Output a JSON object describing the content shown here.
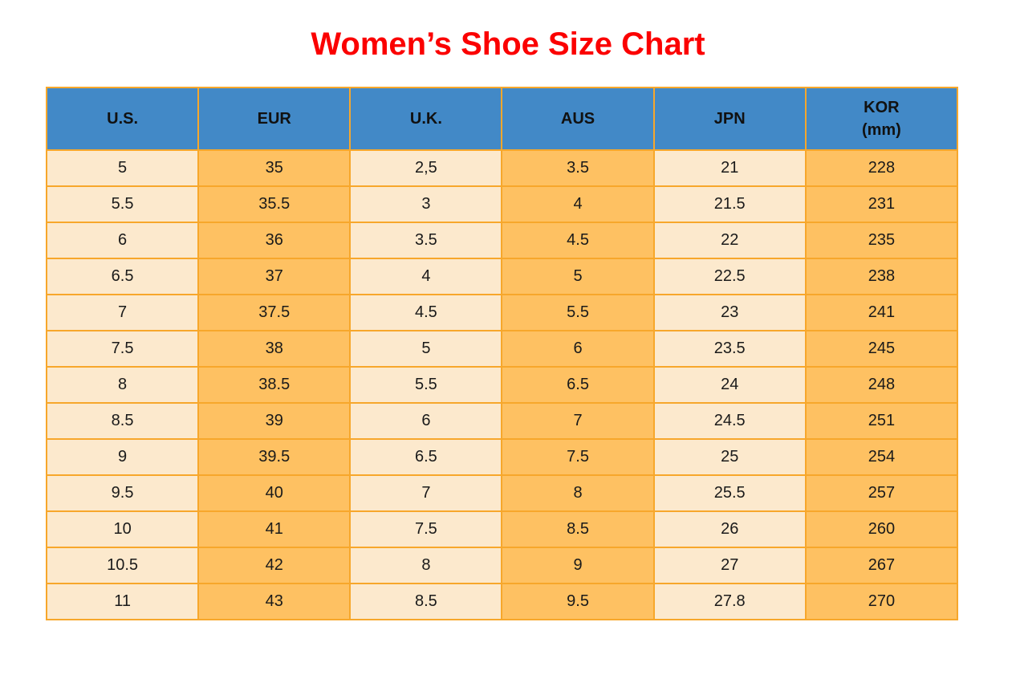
{
  "title": "Women’s Shoe Size Chart",
  "colors": {
    "title_red": "#fb0000",
    "header_blue": "#4289c7",
    "border_orange": "#f7a72b",
    "cell_cream": "#fce9cd",
    "cell_orange": "#fec162",
    "header_text": "#111111",
    "cell_text": "#1a1a1a"
  },
  "chart_data": {
    "type": "table",
    "title": "Women’s Shoe Size Chart",
    "columns": [
      "U.S.",
      "EUR",
      "U.K.",
      "AUS",
      "JPN",
      "KOR\n(mm)"
    ],
    "rows": [
      [
        "5",
        "35",
        "2,5",
        "3.5",
        "21",
        "228"
      ],
      [
        "5.5",
        "35.5",
        "3",
        "4",
        "21.5",
        "231"
      ],
      [
        "6",
        "36",
        "3.5",
        "4.5",
        "22",
        "235"
      ],
      [
        "6.5",
        "37",
        "4",
        "5",
        "22.5",
        "238"
      ],
      [
        "7",
        "37.5",
        "4.5",
        "5.5",
        "23",
        "241"
      ],
      [
        "7.5",
        "38",
        "5",
        "6",
        "23.5",
        "245"
      ],
      [
        "8",
        "38.5",
        "5.5",
        "6.5",
        "24",
        "248"
      ],
      [
        "8.5",
        "39",
        "6",
        "7",
        "24.5",
        "251"
      ],
      [
        "9",
        "39.5",
        "6.5",
        "7.5",
        "25",
        "254"
      ],
      [
        "9.5",
        "40",
        "7",
        "8",
        "25.5",
        "257"
      ],
      [
        "10",
        "41",
        "7.5",
        "8.5",
        "26",
        "260"
      ],
      [
        "10.5",
        "42",
        "8",
        "9",
        "27",
        "267"
      ],
      [
        "11",
        "43",
        "8.5",
        "9.5",
        "27.8",
        "270"
      ]
    ]
  }
}
